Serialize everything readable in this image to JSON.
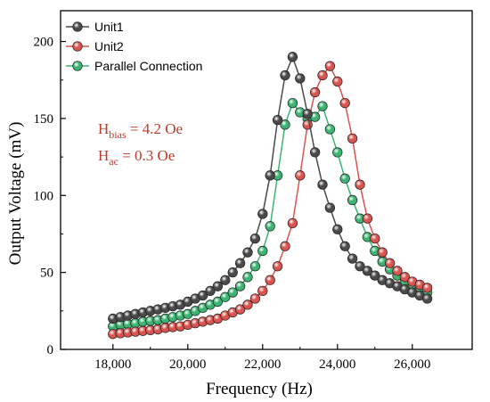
{
  "chart_data": {
    "type": "line",
    "xlabel": "Frequency (Hz)",
    "ylabel": "Output Voltage (mV)",
    "xlim": [
      16600,
      27600
    ],
    "ylim": [
      0,
      220
    ],
    "xticks": [
      18000,
      20000,
      22000,
      24000,
      26000
    ],
    "xtick_labels": [
      "18,000",
      "20,000",
      "22,000",
      "24,000",
      "26,000"
    ],
    "yticks": [
      0,
      50,
      100,
      150,
      200
    ],
    "ytick_labels": [
      "0",
      "50",
      "100",
      "150",
      "200"
    ],
    "grid": false,
    "legend_position": "top-left",
    "annotation": {
      "line1_main": "H",
      "line1_sub": "bias",
      "line1_rest": " = 4.2 Oe",
      "line2_main": "H",
      "line2_sub": "ac",
      "line2_rest": "   = 0.3 Oe",
      "color": "#c0392b"
    },
    "x": [
      18000,
      18200,
      18400,
      18600,
      18800,
      19000,
      19200,
      19400,
      19600,
      19800,
      20000,
      20200,
      20400,
      20600,
      20800,
      21000,
      21200,
      21400,
      21600,
      21800,
      22000,
      22200,
      22400,
      22600,
      22800,
      23000,
      23200,
      23400,
      23600,
      23800,
      24000,
      24200,
      24400,
      24600,
      24800,
      25000,
      25200,
      25400,
      25600,
      25800,
      26000,
      26200,
      26400
    ],
    "series": [
      {
        "name": "Unit1",
        "color": "#4a4a4a",
        "values": [
          20,
          21,
          22,
          23,
          24,
          25,
          26,
          27,
          28,
          29,
          31,
          33,
          35,
          38,
          41,
          45,
          50,
          56,
          63,
          72,
          88,
          113,
          149,
          178,
          190,
          176,
          153,
          128,
          107,
          92,
          78,
          67,
          59,
          54,
          51,
          48,
          45,
          43,
          41,
          39,
          37,
          35,
          33
        ]
      },
      {
        "name": "Unit2",
        "color": "#d9534f",
        "values": [
          10,
          10.5,
          11,
          11.5,
          12,
          12.5,
          13,
          14,
          14.5,
          15,
          16,
          17,
          18,
          19,
          20,
          22,
          24,
          26,
          29,
          33,
          38,
          45,
          54,
          67,
          82,
          113,
          146,
          167,
          178,
          184,
          174,
          160,
          137,
          107,
          85,
          72,
          63,
          56,
          51,
          47,
          44,
          42,
          40
        ]
      },
      {
        "name": "Parallel Connection",
        "color": "#3cb371",
        "values": [
          15,
          16,
          16.5,
          17,
          18,
          18.5,
          19,
          20,
          21,
          22,
          23,
          25,
          27,
          29,
          31,
          34,
          37,
          41,
          47,
          54,
          64,
          80,
          113,
          146,
          160,
          154,
          150,
          151,
          158,
          143,
          128,
          111,
          97,
          85,
          73,
          64,
          57,
          52,
          48,
          44,
          41,
          39,
          37
        ]
      }
    ]
  }
}
